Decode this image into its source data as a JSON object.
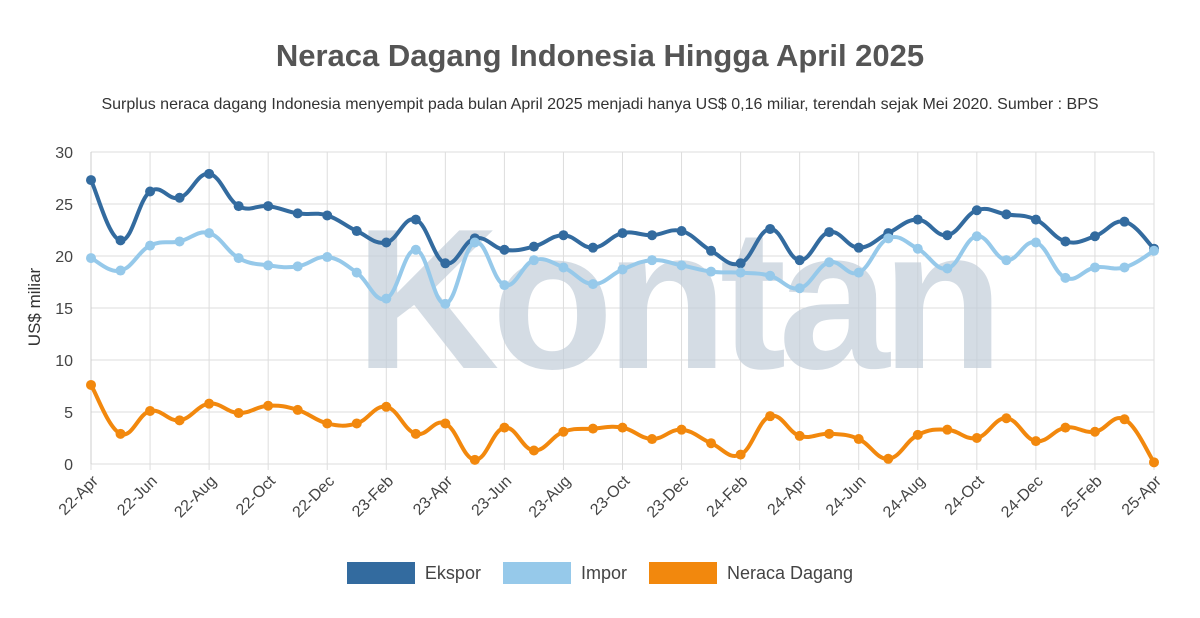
{
  "title": "Neraca Dagang Indonesia Hingga April 2025",
  "subtitle": "Surplus neraca dagang Indonesia menyempit pada bulan April 2025 menjadi hanya US$ 0,16 miliar, terendah sejak Mei 2020. Sumber : BPS",
  "watermark": "Kontan",
  "chart_data": {
    "type": "line",
    "ylabel": "US$ miliar",
    "xlabel": "",
    "ylim": [
      0,
      30
    ],
    "yticks": [
      0,
      5,
      10,
      15,
      20,
      25,
      30
    ],
    "grid": true,
    "legend_position": "bottom",
    "x": [
      "22-Apr",
      "22-May",
      "22-Jun",
      "22-Jul",
      "22-Aug",
      "22-Sep",
      "22-Oct",
      "22-Nov",
      "22-Dec",
      "23-Jan",
      "23-Feb",
      "23-Mar",
      "23-Apr",
      "23-May",
      "23-Jun",
      "23-Jul",
      "23-Aug",
      "23-Sep",
      "23-Oct",
      "23-Nov",
      "23-Dec",
      "24-Jan",
      "24-Feb",
      "24-Mar",
      "24-Apr",
      "24-May",
      "24-Jun",
      "24-Jul",
      "24-Aug",
      "24-Sep",
      "24-Oct",
      "24-Nov",
      "24-Dec",
      "25-Jan",
      "25-Feb",
      "25-Mar",
      "25-Apr"
    ],
    "xtick_labels": [
      "22-Apr",
      "22-Jun",
      "22-Aug",
      "22-Oct",
      "22-Dec",
      "23-Feb",
      "23-Apr",
      "23-Jun",
      "23-Aug",
      "23-Oct",
      "23-Dec",
      "24-Feb",
      "24-Apr",
      "24-Jun",
      "24-Aug",
      "24-Oct",
      "24-Dec",
      "25-Feb",
      "25-Apr"
    ],
    "series": [
      {
        "name": "Ekspor",
        "color": "#336b9f",
        "values": [
          27.3,
          21.5,
          26.2,
          25.6,
          27.9,
          24.8,
          24.8,
          24.1,
          23.9,
          22.4,
          21.3,
          23.5,
          19.3,
          21.7,
          20.6,
          20.9,
          22.0,
          20.8,
          22.2,
          22.0,
          22.4,
          20.5,
          19.3,
          22.6,
          19.6,
          22.3,
          20.8,
          22.2,
          23.5,
          22.0,
          24.4,
          24.0,
          23.5,
          21.4,
          21.9,
          23.3,
          20.7
        ]
      },
      {
        "name": "Impor",
        "color": "#96c9ea",
        "values": [
          19.8,
          18.6,
          21.0,
          21.4,
          22.2,
          19.8,
          19.1,
          19.0,
          19.9,
          18.4,
          15.9,
          20.6,
          15.4,
          21.3,
          17.2,
          19.6,
          18.9,
          17.3,
          18.7,
          19.6,
          19.1,
          18.5,
          18.4,
          18.1,
          16.9,
          19.4,
          18.4,
          21.7,
          20.7,
          18.8,
          21.9,
          19.6,
          21.3,
          17.9,
          18.9,
          18.9,
          20.5
        ]
      },
      {
        "name": "Neraca Dagang",
        "color": "#f2880d",
        "values": [
          7.6,
          2.9,
          5.1,
          4.2,
          5.8,
          4.9,
          5.6,
          5.2,
          3.9,
          3.9,
          5.5,
          2.9,
          3.9,
          0.4,
          3.5,
          1.3,
          3.1,
          3.4,
          3.5,
          2.4,
          3.3,
          2.0,
          0.9,
          4.6,
          2.7,
          2.9,
          2.4,
          0.5,
          2.8,
          3.3,
          2.5,
          4.4,
          2.2,
          3.5,
          3.1,
          4.3,
          0.16
        ]
      }
    ]
  }
}
